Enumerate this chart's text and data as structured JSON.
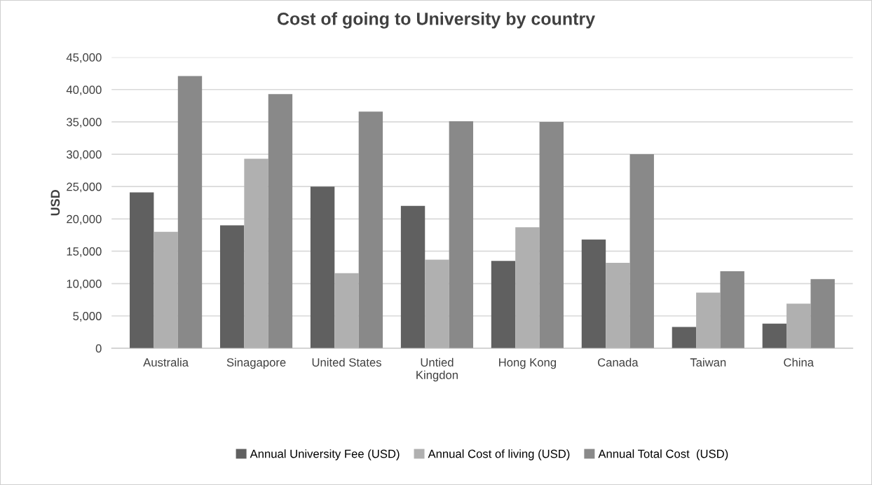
{
  "chart_data": {
    "type": "bar",
    "title": "Cost of going to University by country",
    "ylabel": "USD",
    "categories": [
      "Australia",
      "Sinagapore",
      "United States",
      "Untied\nKingdon",
      "Hong Kong",
      "Canada",
      "Taiwan",
      "China"
    ],
    "series": [
      {
        "name": "Annual University Fee (USD)",
        "color": "#606060",
        "values": [
          24100,
          19000,
          25000,
          22000,
          13500,
          16800,
          3300,
          3800
        ]
      },
      {
        "name": "Annual Cost of living (USD)",
        "color": "#b0b0b0",
        "values": [
          18000,
          29300,
          11600,
          13700,
          18700,
          13200,
          8600,
          6900
        ]
      },
      {
        "name": "Annual Total Cost  (USD)",
        "color": "#898989",
        "values": [
          42100,
          39300,
          36600,
          35100,
          35000,
          30000,
          11900,
          10700
        ]
      }
    ],
    "ylim": [
      0,
      45000
    ],
    "yticks": [
      {
        "value": 0,
        "label": "0"
      },
      {
        "value": 5000,
        "label": "5,000"
      },
      {
        "value": 10000,
        "label": "10,000"
      },
      {
        "value": 15000,
        "label": "15,000"
      },
      {
        "value": 20000,
        "label": "20,000"
      },
      {
        "value": 25000,
        "label": "25,000"
      },
      {
        "value": 30000,
        "label": "30,000"
      },
      {
        "value": 35000,
        "label": "35,000"
      },
      {
        "value": 40000,
        "label": "40,000"
      },
      {
        "value": 45000,
        "label": "45,000"
      }
    ],
    "grid": "y",
    "legend": "bottom"
  }
}
